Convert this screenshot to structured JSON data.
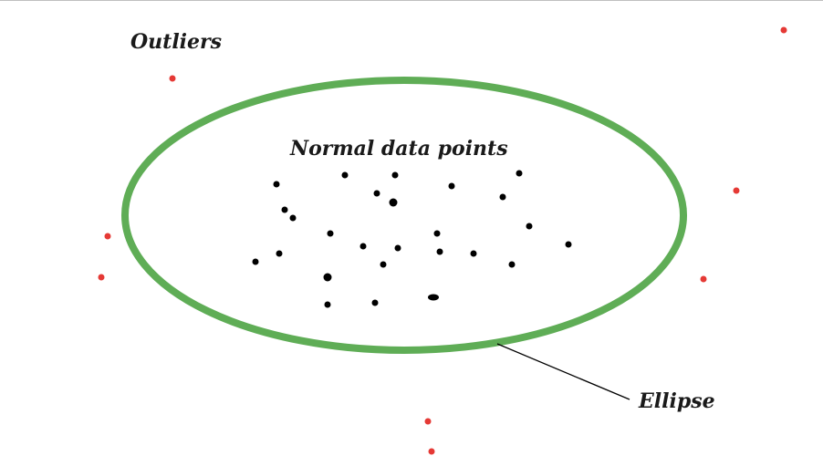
{
  "labels": {
    "outliers": "Outliers",
    "normal": "Normal data points",
    "ellipse": "Ellipse"
  },
  "colors": {
    "ellipse_stroke": "#5fad56",
    "outlier_point": "#e53935",
    "normal_point": "#000000",
    "pointer_line": "#000000"
  }
}
